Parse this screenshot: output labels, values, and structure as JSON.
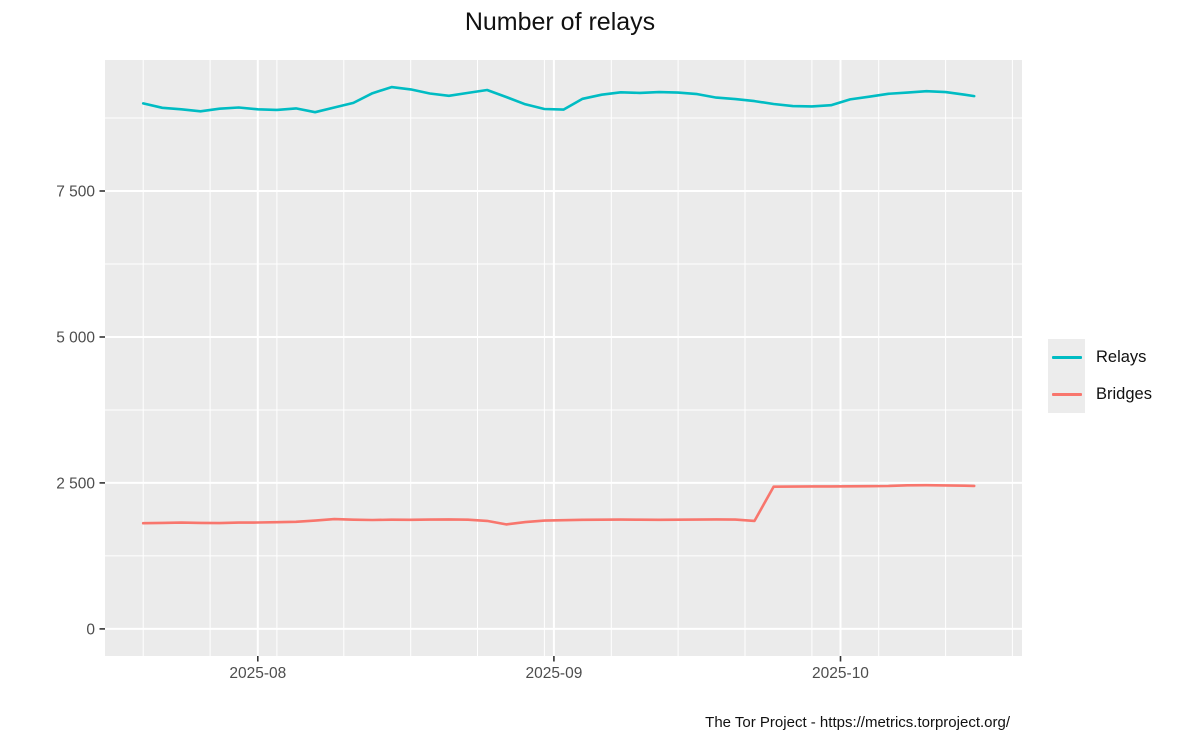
{
  "chart_data": {
    "type": "line",
    "title": "Number of relays",
    "caption": "The Tor Project - https://metrics.torproject.org/",
    "x": [
      "2025-07-20",
      "2025-07-22",
      "2025-07-24",
      "2025-07-26",
      "2025-07-28",
      "2025-07-30",
      "2025-08-01",
      "2025-08-03",
      "2025-08-05",
      "2025-08-07",
      "2025-08-09",
      "2025-08-11",
      "2025-08-13",
      "2025-08-15",
      "2025-08-17",
      "2025-08-19",
      "2025-08-21",
      "2025-08-23",
      "2025-08-25",
      "2025-08-27",
      "2025-08-29",
      "2025-08-31",
      "2025-09-02",
      "2025-09-04",
      "2025-09-06",
      "2025-09-08",
      "2025-09-10",
      "2025-09-12",
      "2025-09-14",
      "2025-09-16",
      "2025-09-18",
      "2025-09-20",
      "2025-09-22",
      "2025-09-24",
      "2025-09-26",
      "2025-09-28",
      "2025-09-30",
      "2025-10-02",
      "2025-10-04",
      "2025-10-06",
      "2025-10-08",
      "2025-10-10",
      "2025-10-12",
      "2025-10-14",
      "2025-10-15"
    ],
    "series": [
      {
        "name": "Relays",
        "color": "#00BCC3",
        "values": [
          9000,
          8925,
          8900,
          8865,
          8910,
          8930,
          8900,
          8890,
          8915,
          8850,
          8930,
          9010,
          9175,
          9280,
          9240,
          9170,
          9130,
          9180,
          9230,
          9110,
          8985,
          8905,
          8895,
          9080,
          9150,
          9190,
          9180,
          9195,
          9185,
          9160,
          9100,
          9075,
          9040,
          8990,
          8955,
          8950,
          8970,
          9070,
          9115,
          9165,
          9185,
          9210,
          9195,
          9150,
          9125
        ]
      },
      {
        "name": "Bridges",
        "color": "#F8766D",
        "values": [
          1810,
          1815,
          1820,
          1815,
          1812,
          1820,
          1822,
          1828,
          1835,
          1855,
          1880,
          1870,
          1865,
          1870,
          1868,
          1872,
          1875,
          1870,
          1850,
          1790,
          1830,
          1855,
          1862,
          1868,
          1870,
          1872,
          1870,
          1868,
          1870,
          1872,
          1875,
          1872,
          1850,
          2435,
          2438,
          2440,
          2440,
          2442,
          2445,
          2448,
          2460,
          2462,
          2458,
          2452,
          2450
        ]
      }
    ],
    "x_domain": [
      "2025-07-16",
      "2025-10-20"
    ],
    "y_domain": [
      -464,
      9744
    ],
    "x_major_ticks": [
      {
        "date": "2025-08-01",
        "label": "2025-08"
      },
      {
        "date": "2025-09-01",
        "label": "2025-09"
      },
      {
        "date": "2025-10-01",
        "label": "2025-10"
      }
    ],
    "x_minor_dates": [
      "2025-07-20",
      "2025-07-27",
      "2025-08-03",
      "2025-08-10",
      "2025-08-17",
      "2025-08-24",
      "2025-08-31",
      "2025-09-07",
      "2025-09-14",
      "2025-09-21",
      "2025-09-28",
      "2025-10-05",
      "2025-10-12",
      "2025-10-19"
    ],
    "y_major_ticks": [
      {
        "value": 0,
        "label": "0"
      },
      {
        "value": 2500,
        "label": "2 500"
      },
      {
        "value": 5000,
        "label": "5 000"
      },
      {
        "value": 7500,
        "label": "7 500"
      }
    ],
    "y_minor_values": [
      1250,
      3750,
      6250,
      8750
    ],
    "xlabel": "",
    "ylabel": "",
    "grid": true,
    "legend_position": "right",
    "panel_bg": "#EBEBEB",
    "grid_color": "#FFFFFF",
    "tick_color": "#333333",
    "axis_text_color": "#4D4D4D"
  }
}
